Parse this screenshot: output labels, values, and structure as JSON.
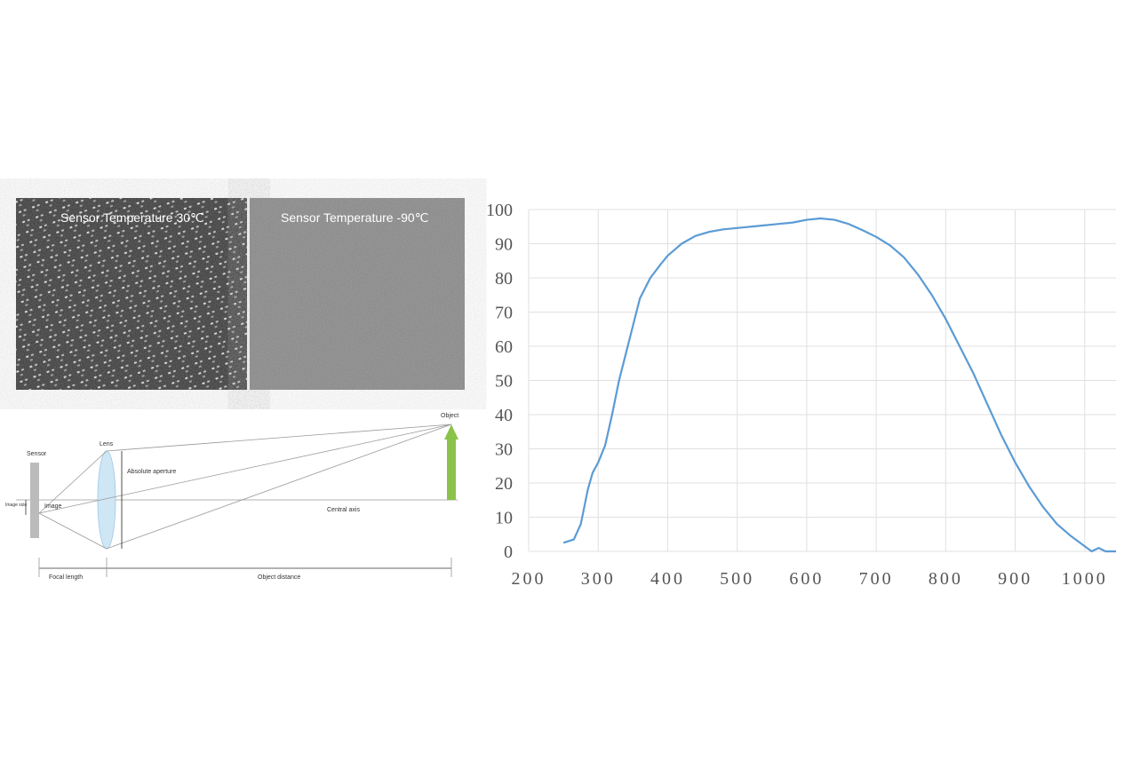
{
  "images": {
    "warm": "Sensor Temperature 30℃",
    "cold": "Sensor Temperature -90℃"
  },
  "diagram": {
    "sensor": "Sensor",
    "lens": "Lens",
    "object": "Object",
    "image_size": "Image size",
    "image": "Image",
    "aperture": "Absolute aperture",
    "axis": "Central axis",
    "focal_length": "Focal length",
    "object_distance": "Object distance"
  },
  "chart_data": {
    "type": "line",
    "x": [
      250,
      265,
      275,
      285,
      292,
      300,
      310,
      320,
      330,
      340,
      350,
      360,
      375,
      390,
      400,
      420,
      440,
      460,
      480,
      500,
      530,
      560,
      580,
      600,
      620,
      640,
      660,
      680,
      700,
      720,
      740,
      760,
      780,
      800,
      820,
      840,
      860,
      880,
      900,
      920,
      940,
      960,
      980,
      1000,
      1010,
      1020,
      1030,
      1045
    ],
    "series": [
      {
        "color": "#5b9bd5",
        "values": [
          2.5,
          3.5,
          8,
          18,
          23,
          26,
          31,
          40,
          50,
          58,
          66,
          74,
          80,
          84,
          86.5,
          90,
          92.3,
          93.5,
          94.2,
          94.6,
          95.2,
          95.8,
          96.2,
          97,
          97.4,
          97,
          95.8,
          94,
          92,
          89.5,
          86,
          81,
          75,
          68,
          60,
          52,
          43,
          34,
          26,
          19,
          13,
          8,
          4.5,
          1.5,
          0,
          1,
          0,
          0
        ]
      }
    ],
    "xlim": [
      200,
      1045
    ],
    "xticks": [
      200,
      300,
      400,
      500,
      600,
      700,
      800,
      900,
      1000
    ],
    "ylim": [
      0,
      100
    ],
    "yticks": [
      0,
      10,
      20,
      30,
      40,
      50,
      60,
      70,
      80,
      90,
      100
    ],
    "grid": true
  }
}
